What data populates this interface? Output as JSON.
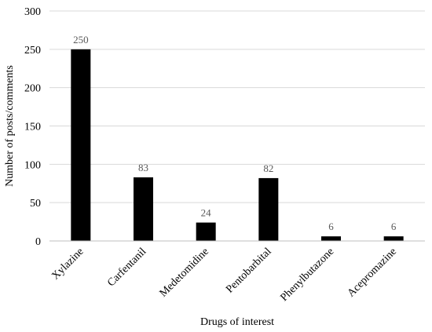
{
  "chart_data": {
    "type": "bar",
    "categories": [
      "Xylazine",
      "Carfentanil",
      "Medetomidine",
      "Pentobarbital",
      "Phenylbutazone",
      "Acepromazine"
    ],
    "values": [
      250,
      83,
      24,
      82,
      6,
      6
    ],
    "data_labels": [
      "250",
      "83",
      "24",
      "82",
      "6",
      "6"
    ],
    "xlabel": "Drugs of interest",
    "ylabel": "Number of posts/comments",
    "ylim": [
      0,
      300
    ],
    "yticks": [
      0,
      50,
      100,
      150,
      200,
      250,
      300
    ],
    "grid": true,
    "bar_color": "#000000",
    "data_label_color": "#595959",
    "grid_color": "#d9d9d9"
  }
}
